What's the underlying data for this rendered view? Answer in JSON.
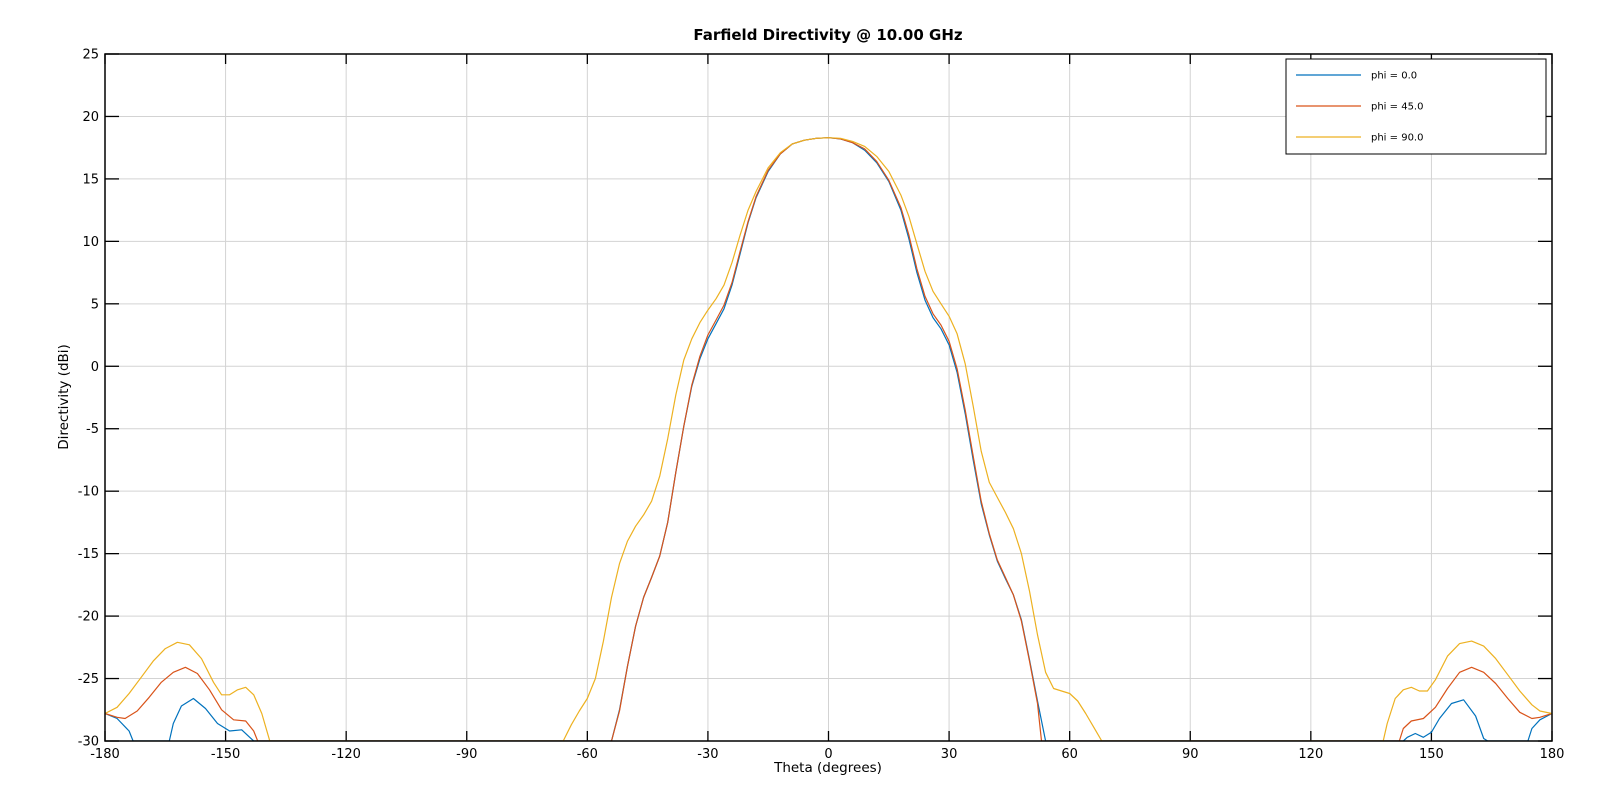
{
  "chart_data": {
    "type": "line",
    "title": "Farfield Directivity @ 10.00 GHz",
    "xlabel": "Theta (degrees)",
    "ylabel": "Directivity (dBi)",
    "xlim": [
      -180,
      180
    ],
    "ylim": [
      -30,
      25
    ],
    "xticks": [
      -180,
      -150,
      -120,
      -90,
      -60,
      -30,
      0,
      30,
      60,
      90,
      120,
      150,
      180
    ],
    "yticks": [
      25,
      20,
      15,
      10,
      5,
      0,
      -5,
      -10,
      -15,
      -20,
      -25,
      -30
    ],
    "grid": true,
    "legend_position": "top-right",
    "series": [
      {
        "name": "phi = 0.0",
        "color": "#0072BD",
        "points": [
          [
            -180,
            -27.8
          ],
          [
            -177,
            -28.2
          ],
          [
            -174,
            -29.2
          ],
          [
            -173,
            -30
          ],
          [
            -164,
            -30
          ],
          [
            -163,
            -28.6
          ],
          [
            -161,
            -27.2
          ],
          [
            -158,
            -26.6
          ],
          [
            -155,
            -27.4
          ],
          [
            -152,
            -28.6
          ],
          [
            -149,
            -29.2
          ],
          [
            -146,
            -29.1
          ],
          [
            -144,
            -29.7
          ],
          [
            -143,
            -30
          ],
          [
            -54,
            -30
          ],
          [
            -52,
            -27.5
          ],
          [
            -50,
            -24.0
          ],
          [
            -48,
            -20.8
          ],
          [
            -46,
            -18.5
          ],
          [
            -44,
            -16.9
          ],
          [
            -42,
            -15.2
          ],
          [
            -40,
            -12.5
          ],
          [
            -38,
            -8.5
          ],
          [
            -36,
            -4.8
          ],
          [
            -34,
            -1.6
          ],
          [
            -32,
            0.6
          ],
          [
            -30,
            2.2
          ],
          [
            -28,
            3.4
          ],
          [
            -26,
            4.6
          ],
          [
            -24,
            6.5
          ],
          [
            -22,
            9.0
          ],
          [
            -20,
            11.5
          ],
          [
            -18,
            13.5
          ],
          [
            -15,
            15.6
          ],
          [
            -12,
            17.0
          ],
          [
            -9,
            17.8
          ],
          [
            -6,
            18.1
          ],
          [
            -3,
            18.25
          ],
          [
            0,
            18.3
          ],
          [
            3,
            18.2
          ],
          [
            6,
            17.9
          ],
          [
            9,
            17.3
          ],
          [
            12,
            16.3
          ],
          [
            15,
            14.8
          ],
          [
            18,
            12.5
          ],
          [
            20,
            10.2
          ],
          [
            22,
            7.5
          ],
          [
            24,
            5.3
          ],
          [
            26,
            3.9
          ],
          [
            28,
            3.0
          ],
          [
            30,
            1.7
          ],
          [
            32,
            -0.5
          ],
          [
            34,
            -3.8
          ],
          [
            36,
            -7.5
          ],
          [
            38,
            -11.0
          ],
          [
            40,
            -13.5
          ],
          [
            42,
            -15.6
          ],
          [
            44,
            -17.0
          ],
          [
            46,
            -18.3
          ],
          [
            48,
            -20.3
          ],
          [
            50,
            -23.5
          ],
          [
            52,
            -26.8
          ],
          [
            54,
            -30
          ],
          [
            143,
            -30
          ],
          [
            144,
            -29.7
          ],
          [
            146,
            -29.4
          ],
          [
            148,
            -29.7
          ],
          [
            150,
            -29.3
          ],
          [
            152,
            -28.2
          ],
          [
            155,
            -27.0
          ],
          [
            158,
            -26.7
          ],
          [
            161,
            -28.0
          ],
          [
            163,
            -29.8
          ],
          [
            164,
            -30
          ],
          [
            174,
            -30
          ],
          [
            175,
            -29.0
          ],
          [
            177,
            -28.3
          ],
          [
            180,
            -27.8
          ]
        ]
      },
      {
        "name": "phi = 45.0",
        "color": "#D95319",
        "points": [
          [
            -180,
            -27.8
          ],
          [
            -177,
            -28.1
          ],
          [
            -175,
            -28.2
          ],
          [
            -172,
            -27.6
          ],
          [
            -169,
            -26.5
          ],
          [
            -166,
            -25.3
          ],
          [
            -163,
            -24.5
          ],
          [
            -160,
            -24.1
          ],
          [
            -157,
            -24.6
          ],
          [
            -154,
            -25.9
          ],
          [
            -151,
            -27.5
          ],
          [
            -148,
            -28.3
          ],
          [
            -145,
            -28.4
          ],
          [
            -143,
            -29.2
          ],
          [
            -142,
            -30
          ],
          [
            -54,
            -30
          ],
          [
            -52,
            -27.6
          ],
          [
            -50,
            -24.0
          ],
          [
            -48,
            -20.8
          ],
          [
            -46,
            -18.5
          ],
          [
            -44,
            -16.9
          ],
          [
            -42,
            -15.2
          ],
          [
            -40,
            -12.5
          ],
          [
            -38,
            -8.5
          ],
          [
            -36,
            -4.8
          ],
          [
            -34,
            -1.5
          ],
          [
            -32,
            0.8
          ],
          [
            -30,
            2.5
          ],
          [
            -28,
            3.7
          ],
          [
            -26,
            4.9
          ],
          [
            -24,
            6.7
          ],
          [
            -22,
            9.2
          ],
          [
            -20,
            11.6
          ],
          [
            -18,
            13.6
          ],
          [
            -15,
            15.7
          ],
          [
            -12,
            17.0
          ],
          [
            -9,
            17.8
          ],
          [
            -6,
            18.1
          ],
          [
            -3,
            18.25
          ],
          [
            0,
            18.3
          ],
          [
            3,
            18.2
          ],
          [
            6,
            17.9
          ],
          [
            9,
            17.4
          ],
          [
            12,
            16.4
          ],
          [
            15,
            14.9
          ],
          [
            18,
            12.7
          ],
          [
            20,
            10.5
          ],
          [
            22,
            7.8
          ],
          [
            24,
            5.6
          ],
          [
            26,
            4.2
          ],
          [
            28,
            3.3
          ],
          [
            30,
            2.0
          ],
          [
            32,
            -0.2
          ],
          [
            34,
            -3.5
          ],
          [
            36,
            -7.2
          ],
          [
            38,
            -10.8
          ],
          [
            40,
            -13.4
          ],
          [
            42,
            -15.5
          ],
          [
            44,
            -16.9
          ],
          [
            46,
            -18.3
          ],
          [
            48,
            -20.4
          ],
          [
            50,
            -23.6
          ],
          [
            52,
            -27.0
          ],
          [
            53,
            -30
          ],
          [
            142,
            -30
          ],
          [
            143,
            -29.0
          ],
          [
            145,
            -28.4
          ],
          [
            148,
            -28.2
          ],
          [
            151,
            -27.3
          ],
          [
            154,
            -25.8
          ],
          [
            157,
            -24.5
          ],
          [
            160,
            -24.1
          ],
          [
            163,
            -24.5
          ],
          [
            166,
            -25.4
          ],
          [
            169,
            -26.6
          ],
          [
            172,
            -27.7
          ],
          [
            175,
            -28.2
          ],
          [
            177,
            -28.1
          ],
          [
            180,
            -27.8
          ]
        ]
      },
      {
        "name": "phi = 90.0",
        "color": "#EDB120",
        "points": [
          [
            -180,
            -27.8
          ],
          [
            -177,
            -27.3
          ],
          [
            -174,
            -26.2
          ],
          [
            -171,
            -24.9
          ],
          [
            -168,
            -23.6
          ],
          [
            -165,
            -22.6
          ],
          [
            -162,
            -22.1
          ],
          [
            -159,
            -22.3
          ],
          [
            -156,
            -23.4
          ],
          [
            -153,
            -25.3
          ],
          [
            -151,
            -26.3
          ],
          [
            -149,
            -26.3
          ],
          [
            -147,
            -25.9
          ],
          [
            -145,
            -25.7
          ],
          [
            -143,
            -26.3
          ],
          [
            -141,
            -27.8
          ],
          [
            -139,
            -30
          ],
          [
            -66,
            -30
          ],
          [
            -64,
            -28.7
          ],
          [
            -62,
            -27.6
          ],
          [
            -60,
            -26.6
          ],
          [
            -58,
            -25.0
          ],
          [
            -56,
            -22.0
          ],
          [
            -54,
            -18.5
          ],
          [
            -52,
            -15.8
          ],
          [
            -50,
            -14.0
          ],
          [
            -48,
            -12.8
          ],
          [
            -46,
            -11.9
          ],
          [
            -44,
            -10.8
          ],
          [
            -42,
            -8.8
          ],
          [
            -40,
            -5.8
          ],
          [
            -38,
            -2.3
          ],
          [
            -36,
            0.5
          ],
          [
            -34,
            2.2
          ],
          [
            -32,
            3.5
          ],
          [
            -30,
            4.5
          ],
          [
            -28,
            5.4
          ],
          [
            -26,
            6.5
          ],
          [
            -24,
            8.3
          ],
          [
            -22,
            10.5
          ],
          [
            -20,
            12.5
          ],
          [
            -18,
            14.0
          ],
          [
            -15,
            15.9
          ],
          [
            -12,
            17.1
          ],
          [
            -9,
            17.8
          ],
          [
            -6,
            18.1
          ],
          [
            -3,
            18.25
          ],
          [
            0,
            18.3
          ],
          [
            3,
            18.25
          ],
          [
            6,
            18.0
          ],
          [
            9,
            17.6
          ],
          [
            12,
            16.8
          ],
          [
            15,
            15.6
          ],
          [
            18,
            13.7
          ],
          [
            20,
            12.0
          ],
          [
            22,
            9.8
          ],
          [
            24,
            7.6
          ],
          [
            26,
            6.0
          ],
          [
            28,
            5.0
          ],
          [
            30,
            4.0
          ],
          [
            32,
            2.6
          ],
          [
            34,
            0.2
          ],
          [
            36,
            -3.2
          ],
          [
            38,
            -6.8
          ],
          [
            40,
            -9.3
          ],
          [
            42,
            -10.5
          ],
          [
            44,
            -11.7
          ],
          [
            46,
            -13.0
          ],
          [
            48,
            -15.0
          ],
          [
            50,
            -18.0
          ],
          [
            52,
            -21.5
          ],
          [
            54,
            -24.5
          ],
          [
            56,
            -25.8
          ],
          [
            58,
            -26.0
          ],
          [
            60,
            -26.2
          ],
          [
            62,
            -26.8
          ],
          [
            64,
            -27.8
          ],
          [
            66,
            -28.9
          ],
          [
            68,
            -30
          ],
          [
            138,
            -30
          ],
          [
            139,
            -28.6
          ],
          [
            141,
            -26.6
          ],
          [
            143,
            -25.9
          ],
          [
            145,
            -25.7
          ],
          [
            147,
            -26.0
          ],
          [
            149,
            -26.0
          ],
          [
            151,
            -25.1
          ],
          [
            154,
            -23.2
          ],
          [
            157,
            -22.2
          ],
          [
            160,
            -22.0
          ],
          [
            163,
            -22.4
          ],
          [
            166,
            -23.4
          ],
          [
            169,
            -24.7
          ],
          [
            172,
            -26.0
          ],
          [
            175,
            -27.1
          ],
          [
            177,
            -27.6
          ],
          [
            180,
            -27.8
          ]
        ]
      }
    ]
  }
}
